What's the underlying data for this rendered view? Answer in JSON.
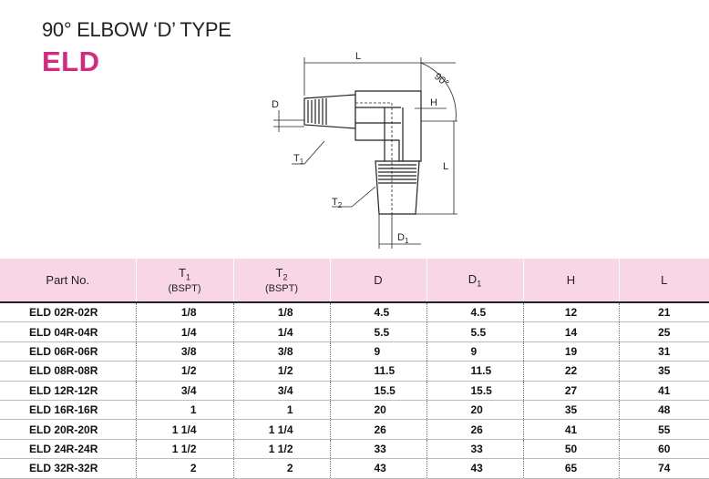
{
  "title": "90° ELBOW ‘D’ TYPE",
  "code": "ELD",
  "drawing": {
    "L_top": "L",
    "angle": "90°",
    "H": "H",
    "D": "D",
    "T1": "T",
    "T1_sub": "1",
    "L_side": "L",
    "T2": "T",
    "T2_sub": "2",
    "D1": "D",
    "D1_sub": "1"
  },
  "table": {
    "headers": {
      "part_no": "Part No.",
      "t1": "T",
      "t1_sub": "1",
      "t1_note": "(BSPT)",
      "t2": "T",
      "t2_sub": "2",
      "t2_note": "(BSPT)",
      "d": "D",
      "d1": "D",
      "d1_sub": "1",
      "h": "H",
      "l": "L"
    },
    "rows": [
      {
        "part": "ELD 02R-02R",
        "t1": "1/8",
        "t2": "1/8",
        "d": "4.5",
        "d1": "4.5",
        "h": "12",
        "l": "21"
      },
      {
        "part": "ELD 04R-04R",
        "t1": "1/4",
        "t2": "1/4",
        "d": "5.5",
        "d1": "5.5",
        "h": "14",
        "l": "25"
      },
      {
        "part": "ELD 06R-06R",
        "t1": "3/8",
        "t2": "3/8",
        "d": "9",
        "d1": "9",
        "h": "19",
        "l": "31"
      },
      {
        "part": "ELD 08R-08R",
        "t1": "1/2",
        "t2": "1/2",
        "d": "11.5",
        "d1": "11.5",
        "h": "22",
        "l": "35"
      },
      {
        "part": "ELD 12R-12R",
        "t1": "3/4",
        "t2": "3/4",
        "d": "15.5",
        "d1": "15.5",
        "h": "27",
        "l": "41"
      },
      {
        "part": "ELD 16R-16R",
        "t1": "1",
        "t2": "1",
        "d": "20",
        "d1": "20",
        "h": "35",
        "l": "48"
      },
      {
        "part": "ELD 20R-20R",
        "t1": "1 1/4",
        "t2": "1 1/4",
        "d": "26",
        "d1": "26",
        "h": "41",
        "l": "55"
      },
      {
        "part": "ELD 24R-24R",
        "t1": "1 1/2",
        "t2": "1 1/2",
        "d": "33",
        "d1": "33",
        "h": "50",
        "l": "60"
      },
      {
        "part": "ELD 32R-32R",
        "t1": "2",
        "t2": "2",
        "d": "43",
        "d1": "43",
        "h": "65",
        "l": "74"
      }
    ]
  }
}
